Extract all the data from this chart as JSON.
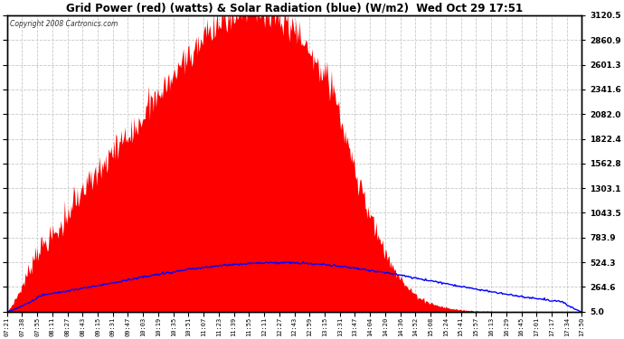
{
  "title": "Grid Power (red) (watts) & Solar Radiation (blue) (W/m2)  Wed Oct 29 17:51",
  "copyright_text": "Copyright 2008 Cartronics.com",
  "background_color": "#ffffff",
  "plot_bg_color": "#ffffff",
  "yticks": [
    5.0,
    264.6,
    524.3,
    783.9,
    1043.5,
    1303.1,
    1562.8,
    1822.4,
    2082.0,
    2341.6,
    2601.3,
    2860.9,
    3120.5
  ],
  "ymin": 5.0,
  "ymax": 3120.5,
  "grid_color": "#c8c8c8",
  "grid_style": "--",
  "red_fill_color": "#ff0000",
  "blue_line_color": "#0000ff",
  "x_labels": [
    "07:21",
    "07:38",
    "07:55",
    "08:11",
    "08:27",
    "08:43",
    "09:15",
    "09:31",
    "09:47",
    "10:03",
    "10:19",
    "10:35",
    "10:51",
    "11:07",
    "11:23",
    "11:39",
    "11:55",
    "12:11",
    "12:27",
    "12:43",
    "12:59",
    "13:15",
    "13:31",
    "13:47",
    "14:04",
    "14:20",
    "14:36",
    "14:52",
    "15:08",
    "15:24",
    "15:41",
    "15:57",
    "16:13",
    "16:29",
    "16:45",
    "17:01",
    "17:17",
    "17:34",
    "17:50"
  ],
  "figwidth": 6.9,
  "figheight": 3.75,
  "dpi": 100
}
